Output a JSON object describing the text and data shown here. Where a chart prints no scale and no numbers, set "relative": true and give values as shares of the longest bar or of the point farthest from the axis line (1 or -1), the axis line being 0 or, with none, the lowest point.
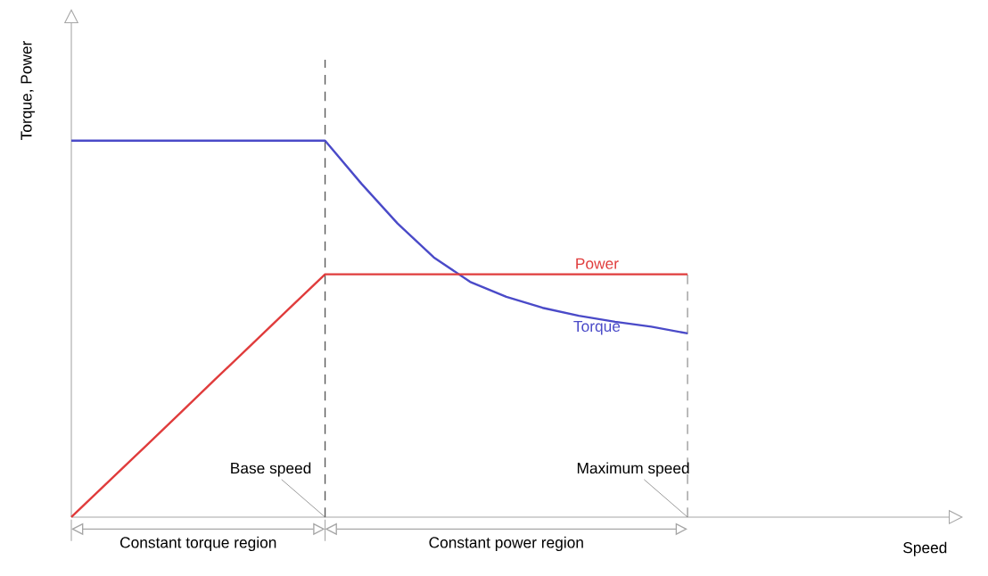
{
  "chart_data": {
    "type": "line",
    "relative": true,
    "xlabel": "Speed",
    "ylabel": "Torque, Power",
    "legend": false,
    "categories": [
      null,
      null,
      null,
      null,
      null,
      null,
      null,
      null,
      null,
      null,
      null,
      null,
      null,
      null,
      null,
      null,
      null,
      null,
      null,
      null,
      null,
      null,
      null,
      null,
      null
    ],
    "series": [
      {
        "name": "Torque",
        "color": "#4a4ac8",
        "values": [
          1,
          1,
          1,
          1,
          1,
          1,
          1,
          1,
          0.886,
          0.78,
          0.69,
          0.625,
          0.585,
          0.556,
          0.535,
          0.519,
          0.506,
          0.488,
          null,
          null,
          null,
          null,
          null,
          null,
          null
        ]
      },
      {
        "name": "Power",
        "color": "#e03c3c",
        "values": [
          0,
          0.092,
          0.184,
          0.276,
          0.369,
          0.461,
          0.553,
          0.645,
          0.645,
          0.645,
          0.645,
          0.645,
          0.645,
          0.645,
          0.645,
          0.645,
          0.645,
          0.645,
          null,
          null,
          null,
          null,
          null,
          null,
          null
        ]
      }
    ],
    "annotations": [
      "Base speed",
      "Maximum speed",
      "Constant torque region",
      "Constant power region"
    ]
  }
}
